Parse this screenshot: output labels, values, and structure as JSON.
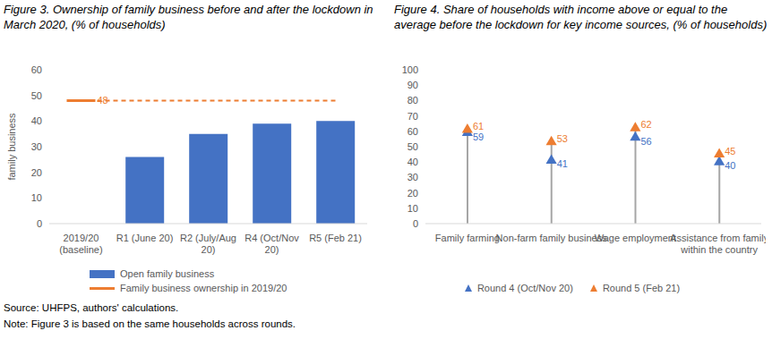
{
  "chart_data": [
    {
      "type": "bar",
      "title": "Figure 3. Ownership of family business before and after the lockdown in March 2020, (% of households)",
      "y_label": "family business",
      "categories": [
        "2019/20 (baseline)",
        "R1 (June 20)",
        "R2 (July/Aug 20)",
        "R4 (Oct/Nov 20)",
        "R5 (Feb 21)"
      ],
      "series": [
        {
          "name": "Open family business",
          "type": "bar",
          "color": "#4472c4",
          "values": [
            null,
            26,
            35,
            39,
            40
          ]
        },
        {
          "name": "Family business ownership in 2019/20",
          "type": "line",
          "color": "#ed7d31",
          "line_style": "dashed",
          "values": [
            48,
            48,
            48,
            48,
            48
          ],
          "value_labels": [
            "48",
            null,
            null,
            null,
            null
          ]
        }
      ],
      "ylim": [
        0,
        60
      ],
      "yticks": [
        0,
        10,
        20,
        30,
        40,
        50,
        60
      ],
      "grid": false,
      "legend": "bottom",
      "annotations": [
        "Source: UHFPS, authors' calculations.",
        "Note: Figure 3 is based on the same households across rounds."
      ]
    },
    {
      "type": "lollipop",
      "title": "Figure 4. Share of households with income above or equal to the average before the lockdown for key income sources, (% of households)",
      "categories": [
        "Family farming",
        "Non-farm family business",
        "Wage employment",
        "Assistance from family within the country"
      ],
      "series": [
        {
          "name": "Round 4 (Oct/Nov 20)",
          "color": "#4472c4",
          "marker": "triangle",
          "values": [
            59,
            41,
            56,
            40
          ]
        },
        {
          "name": "Round 5 (Feb 21)",
          "color": "#ed7d31",
          "marker": "triangle",
          "values": [
            61,
            53,
            62,
            45
          ]
        }
      ],
      "ylim": [
        0,
        100
      ],
      "yticks": [
        0,
        10,
        20,
        30,
        40,
        50,
        60,
        70,
        80,
        90,
        100
      ],
      "grid": false,
      "data_labels": true,
      "legend": "bottom"
    }
  ]
}
